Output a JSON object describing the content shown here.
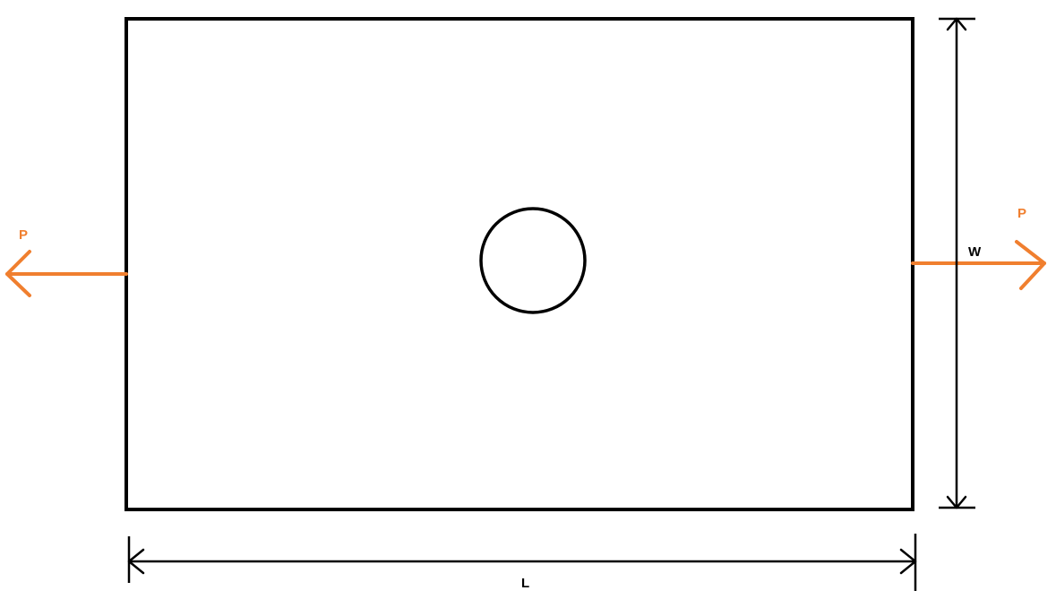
{
  "diagram": {
    "load_left_label": "P",
    "load_right_label": "P",
    "width_label": "W",
    "length_label": "L"
  },
  "colors": {
    "outline": "#000000",
    "load_arrow": "#f07f2f",
    "background": "#ffffff"
  },
  "icons": {
    "load_arrow_left": "arrow-left-icon",
    "load_arrow_right": "arrow-right-icon"
  }
}
